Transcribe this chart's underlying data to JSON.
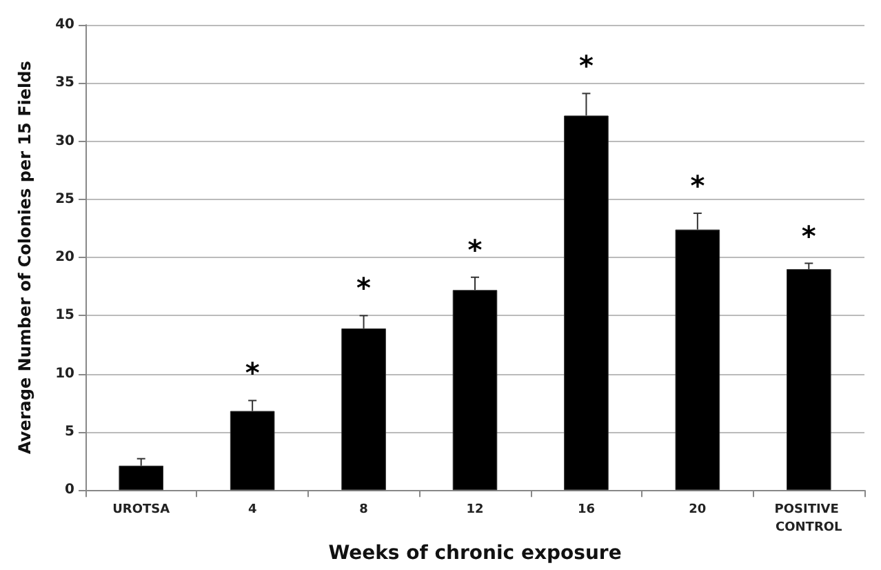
{
  "chart_data": {
    "type": "bar",
    "xlabel": "Weeks of chronic exposure",
    "ylabel": "Average Number of Colonies per 15 Fields",
    "categories": [
      "UROTSA",
      "4",
      "8",
      "12",
      "16",
      "20",
      "POSITIVE CONTROL"
    ],
    "values": [
      2.1,
      6.8,
      13.9,
      17.2,
      32.2,
      22.4,
      19.0
    ],
    "errors": [
      [
        2.1,
        2.7
      ],
      [
        6.8,
        7.7
      ],
      [
        13.9,
        15.0
      ],
      [
        17.2,
        18.3
      ],
      [
        32.2,
        34.1
      ],
      [
        22.4,
        23.8
      ],
      [
        19.0,
        19.5
      ]
    ],
    "color": "#000000",
    "ylim": [
      0,
      40
    ],
    "yticks": [
      0,
      5,
      10,
      15,
      20,
      25,
      30,
      35,
      40
    ],
    "grid": "y",
    "value_labels": [
      null,
      "*",
      "*",
      "*",
      "*",
      "*",
      "*"
    ]
  }
}
